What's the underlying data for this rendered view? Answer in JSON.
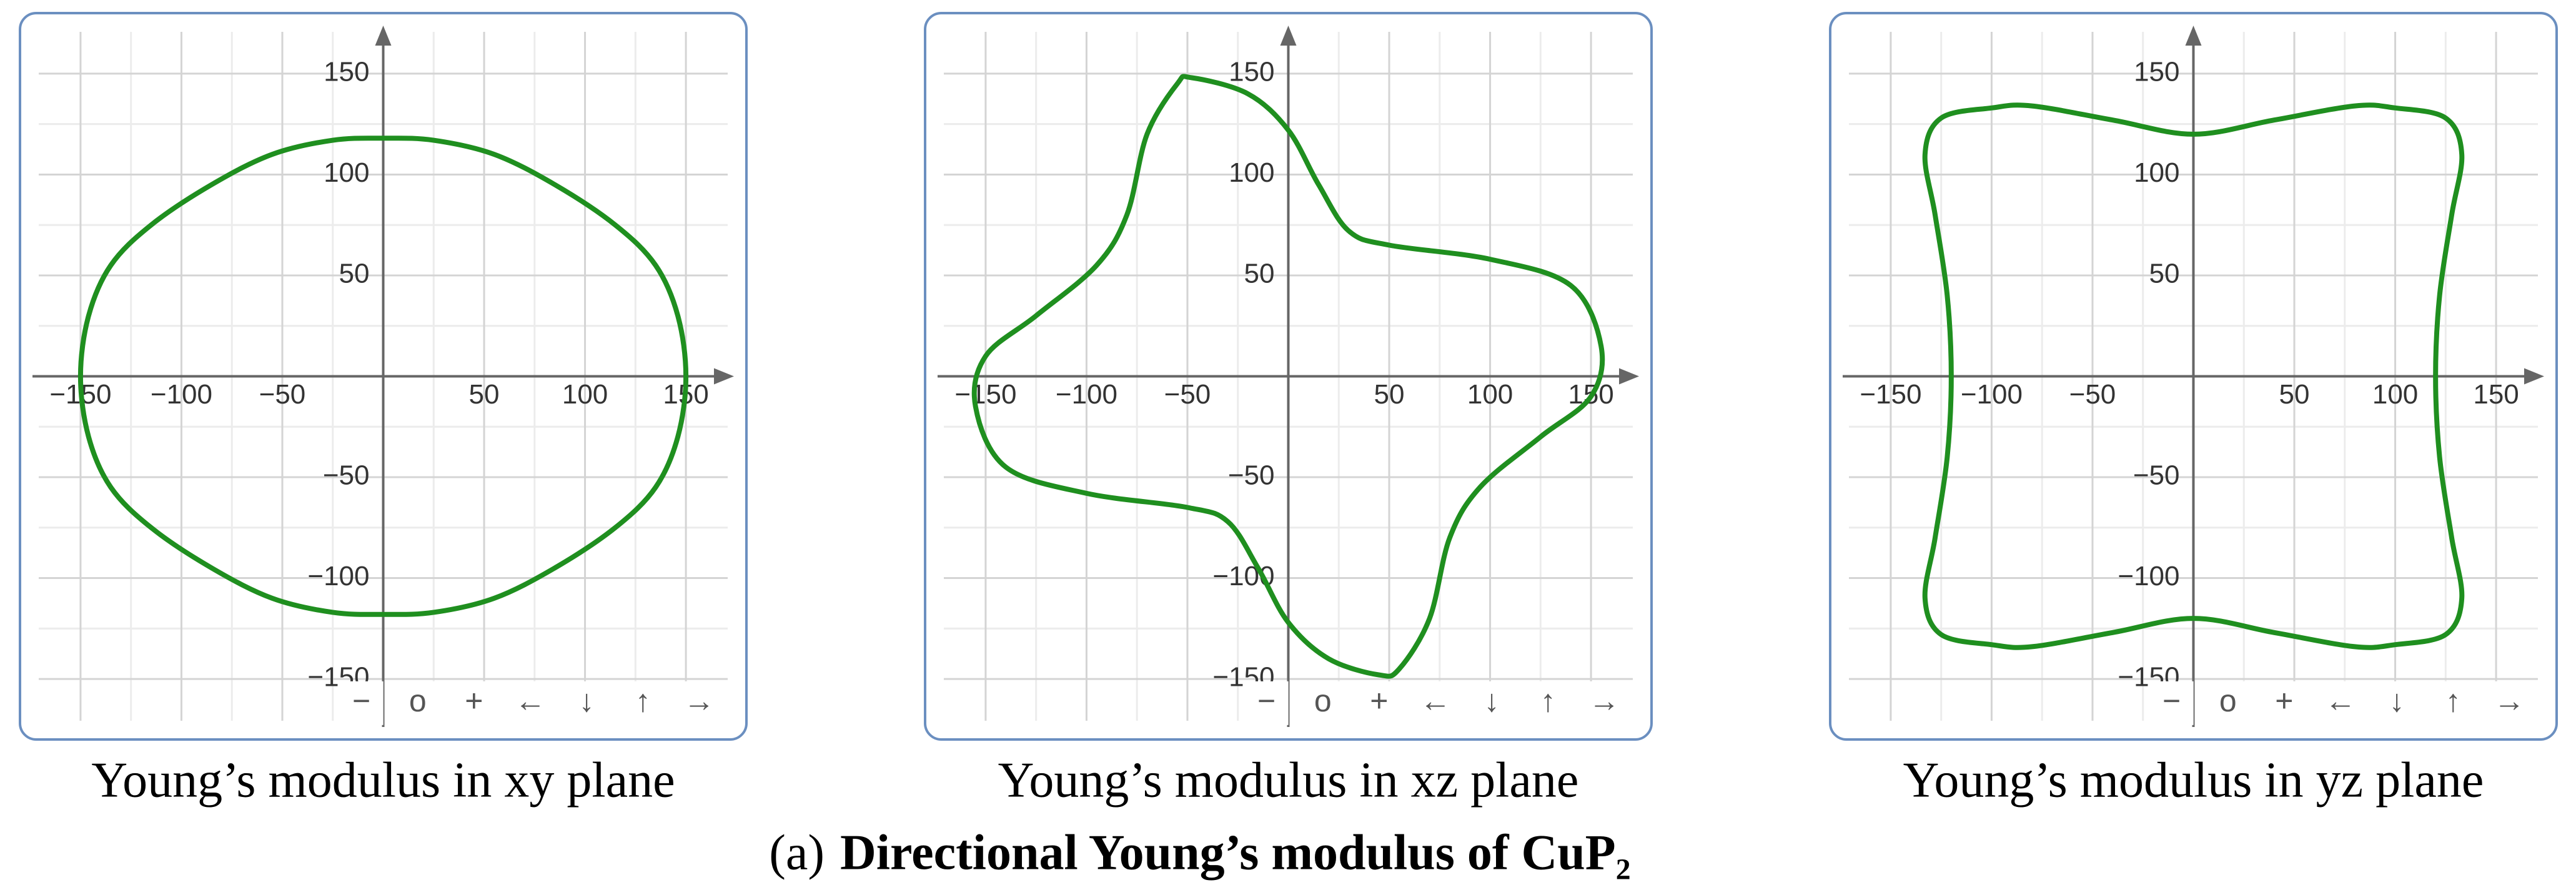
{
  "toolbar": [
    "−",
    "o",
    "+",
    "←",
    "↓",
    "↑",
    "→"
  ],
  "figure_label": "(a)",
  "figure_title": "Directional Young’s modulus of CuP₂",
  "chart_data": [
    {
      "type": "line",
      "caption": "Young’s modulus in xy plane",
      "color": "#1f8f1f",
      "x": [
        150,
        146,
        135,
        115,
        85,
        55,
        25,
        0,
        -25,
        -55,
        -85,
        -115,
        -135,
        -146,
        -150,
        -146,
        -135,
        -115,
        -85,
        -55,
        -25,
        0,
        25,
        55,
        85,
        115,
        135,
        146
      ],
      "values": [
        0,
        30,
        55,
        75,
        95,
        110,
        117,
        118,
        117,
        110,
        95,
        75,
        55,
        30,
        0,
        -30,
        -55,
        -75,
        -95,
        -110,
        -117,
        -118,
        -117,
        -110,
        -95,
        -75,
        -55,
        -30
      ],
      "xlim": [
        -180,
        180
      ],
      "ylim": [
        -180,
        180
      ],
      "xticks": [
        {
          "value": -150,
          "label": "−150"
        },
        {
          "value": -100,
          "label": "−100"
        },
        {
          "value": -50,
          "label": "−50"
        },
        50,
        100,
        150
      ],
      "yticks": [
        {
          "value": -150,
          "label": "−150"
        },
        {
          "value": -100,
          "label": "−100"
        },
        {
          "value": -50,
          "label": "−50"
        },
        50,
        100,
        150
      ],
      "grid": true
    },
    {
      "type": "line",
      "caption": "Young’s modulus in xz plane",
      "color": "#1f8f1f",
      "x": [
        -48,
        -20,
        0,
        15,
        30,
        50,
        100,
        140,
        155,
        150,
        125,
        95,
        80,
        70,
        55,
        45,
        20,
        0,
        -15,
        -30,
        -50,
        -100,
        -140,
        -155,
        -150,
        -125,
        -95,
        -80,
        -70,
        -55
      ],
      "values": [
        148,
        140,
        122,
        95,
        72,
        65,
        58,
        45,
        15,
        -10,
        -30,
        -55,
        -80,
        -120,
        -145,
        -148,
        -140,
        -122,
        -95,
        -72,
        -65,
        -58,
        -45,
        -15,
        10,
        30,
        55,
        80,
        120,
        145
      ],
      "xlim": [
        -180,
        180
      ],
      "ylim": [
        -180,
        180
      ],
      "xticks": [
        {
          "value": -150,
          "label": "−150"
        },
        {
          "value": -100,
          "label": "−100"
        },
        {
          "value": -50,
          "label": "−50"
        },
        50,
        100,
        150
      ],
      "yticks": [
        {
          "value": -150,
          "label": "−150"
        },
        {
          "value": -100,
          "label": "−100"
        },
        {
          "value": -50,
          "label": "−50"
        },
        50,
        100,
        150
      ],
      "grid": true
    },
    {
      "type": "line",
      "caption": "Young’s modulus in yz plane",
      "color": "#1f8f1f",
      "x": [
        120,
        122,
        128,
        133,
        125,
        100,
        80,
        40,
        0,
        -40,
        -80,
        -100,
        -125,
        -133,
        -128,
        -122,
        -120,
        -122,
        -128,
        -133,
        -125,
        -100,
        -80,
        -40,
        0,
        40,
        80,
        100,
        125,
        133,
        128,
        122
      ],
      "values": [
        0,
        40,
        80,
        110,
        128,
        133,
        134,
        127,
        120,
        127,
        134,
        133,
        128,
        110,
        80,
        40,
        0,
        -40,
        -80,
        -110,
        -128,
        -133,
        -134,
        -127,
        -120,
        -127,
        -134,
        -133,
        -128,
        -110,
        -80,
        -40
      ],
      "xlim": [
        -180,
        180
      ],
      "ylim": [
        -180,
        180
      ],
      "xticks": [
        {
          "value": -150,
          "label": "−150"
        },
        {
          "value": -100,
          "label": "−100"
        },
        {
          "value": -50,
          "label": "−50"
        },
        50,
        100,
        150
      ],
      "yticks": [
        {
          "value": -150,
          "label": "−150"
        },
        {
          "value": -100,
          "label": "−100"
        },
        {
          "value": -50,
          "label": "−50"
        },
        50,
        100,
        150
      ],
      "grid": true
    }
  ]
}
